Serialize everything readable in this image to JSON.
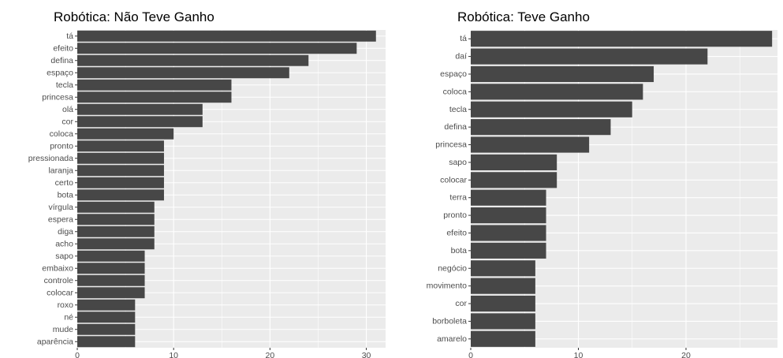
{
  "chart_data": [
    {
      "type": "bar",
      "orientation": "horizontal",
      "title": "Robótica: Não Teve Ganho",
      "xlabel": "",
      "ylabel": "",
      "xlim": [
        0,
        32
      ],
      "xticks": [
        0,
        10,
        20,
        30
      ],
      "grid": true,
      "bar_color": "#474747",
      "panel_color": "#ebebeb",
      "categories": [
        "tá",
        "efeito",
        "defina",
        "espaço",
        "tecla",
        "princesa",
        "olá",
        "cor",
        "coloca",
        "pronto",
        "pressionada",
        "laranja",
        "certo",
        "bota",
        "vírgula",
        "espera",
        "diga",
        "acho",
        "sapo",
        "embaixo",
        "controle",
        "colocar",
        "roxo",
        "né",
        "mude",
        "aparência"
      ],
      "values": [
        31,
        29,
        24,
        22,
        16,
        16,
        13,
        13,
        10,
        9,
        9,
        9,
        9,
        9,
        8,
        8,
        8,
        8,
        7,
        7,
        7,
        7,
        6,
        6,
        6,
        6
      ]
    },
    {
      "type": "bar",
      "orientation": "horizontal",
      "title": "Robótica: Teve Ganho",
      "xlabel": "",
      "ylabel": "",
      "xlim": [
        0,
        28.5
      ],
      "xticks": [
        0,
        10,
        20
      ],
      "grid": true,
      "bar_color": "#474747",
      "panel_color": "#ebebeb",
      "categories": [
        "tá",
        "daí",
        "espaço",
        "coloca",
        "tecla",
        "defina",
        "princesa",
        "sapo",
        "colocar",
        "terra",
        "pronto",
        "efeito",
        "bota",
        "negócio",
        "movimento",
        "cor",
        "borboleta",
        "amarelo"
      ],
      "values": [
        28,
        22,
        17,
        16,
        15,
        13,
        11,
        8,
        8,
        7,
        7,
        7,
        7,
        6,
        6,
        6,
        6,
        6
      ]
    }
  ]
}
